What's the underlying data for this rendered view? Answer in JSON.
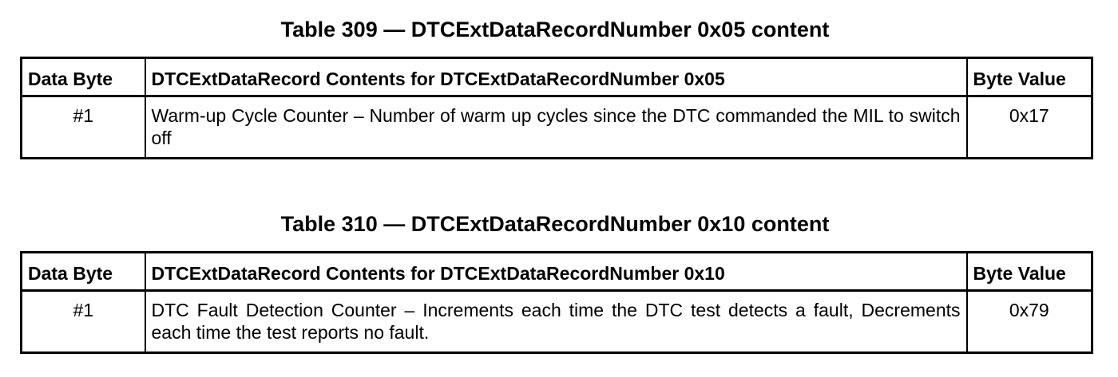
{
  "tables": [
    {
      "caption": "Table 309 — DTCExtDataRecordNumber 0x05 content",
      "headers": [
        "Data Byte",
        "DTCExtDataRecord Contents for DTCExtDataRecordNumber 0x05",
        "Byte Value"
      ],
      "rows": [
        {
          "data_byte": "#1",
          "contents": "Warm-up Cycle Counter – Number of warm up cycles since the DTC commanded the MIL to switch off",
          "byte_value": "0x17"
        }
      ]
    },
    {
      "caption": "Table 310 — DTCExtDataRecordNumber 0x10 content",
      "headers": [
        "Data Byte",
        "DTCExtDataRecord Contents for DTCExtDataRecordNumber 0x10",
        "Byte Value"
      ],
      "rows": [
        {
          "data_byte": "#1",
          "contents": "DTC Fault Detection Counter – Increments each time the DTC test detects a fault, Decrements each time the test reports no fault.",
          "byte_value": "0x79"
        }
      ]
    }
  ]
}
